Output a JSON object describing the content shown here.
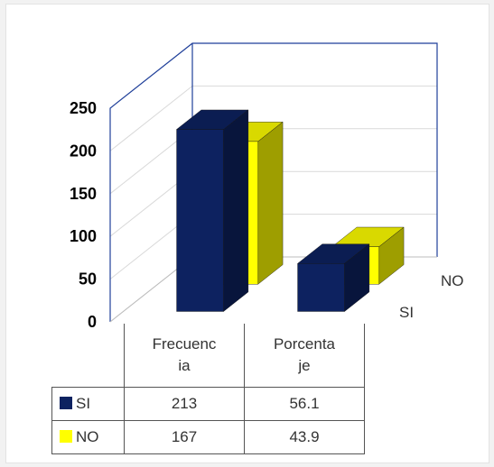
{
  "chart_data": {
    "type": "bar",
    "subtype": "3d-clustered-column",
    "categories": [
      "Frecuencia",
      "Porcentaje"
    ],
    "category_display": [
      [
        "Frecuenc",
        "ia"
      ],
      [
        "Porcenta",
        "je"
      ]
    ],
    "series": [
      {
        "name": "SI",
        "values": [
          213,
          56.1
        ],
        "color": "#0d2260"
      },
      {
        "name": "NO",
        "values": [
          167,
          43.9
        ],
        "color": "#ffff00"
      }
    ],
    "y_ticks": [
      "0",
      "50",
      "100",
      "150",
      "200",
      "250"
    ],
    "ylim": [
      0,
      250
    ],
    "grid": true,
    "depth_labels": [
      "SI",
      "NO"
    ],
    "data_table": true,
    "table_values": [
      [
        "213",
        "56.1"
      ],
      [
        "167",
        "43.9"
      ]
    ]
  }
}
